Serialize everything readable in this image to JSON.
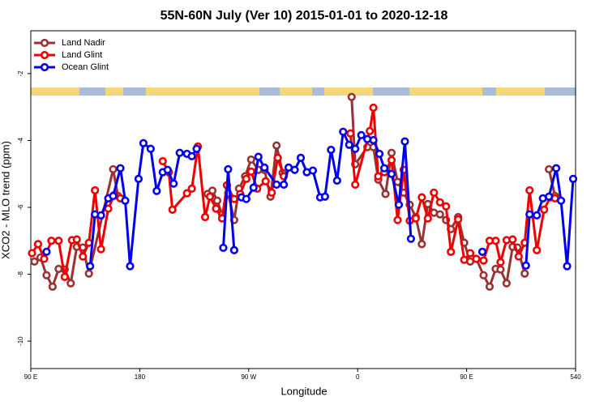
{
  "chart_data": {
    "type": "line",
    "title": "55N-60N July (Ver 10)   2015-01-01 to 2020-12-18",
    "xlabel": "Longitude",
    "ylabel": "XCO2 - MLO trend (ppm)",
    "xlim": [
      90,
      540
    ],
    "ylim": [
      -10.82,
      -0.72
    ],
    "xticks": [
      {
        "value": 90,
        "label": "90 E"
      },
      180,
      {
        "value": 270,
        "label": "90 W"
      },
      {
        "value": 360,
        "label": "0"
      },
      {
        "value": 450,
        "label": "90 E"
      },
      540
    ],
    "yticks": [
      -10,
      -8,
      -6,
      -4,
      -2
    ],
    "legend": "upper left",
    "series": [
      {
        "name": "Land Nadir",
        "color": "#993333",
        "x": [
          93,
          98,
          103,
          108,
          113,
          118,
          123,
          128,
          133,
          138,
          158,
          162,
          200,
          236,
          240,
          244,
          248,
          253,
          258,
          262,
          267,
          272,
          278,
          283,
          288,
          293,
          298,
          390,
          355,
          358,
          368,
          373,
          377,
          383,
          388,
          393,
          398,
          403,
          408,
          413,
          418,
          423,
          428,
          433,
          437,
          443,
          448,
          453,
          458,
          464,
          469,
          474,
          478,
          483,
          488,
          492,
          498,
          505,
          518,
          523
        ],
        "values": [
          -7.62,
          -7.5,
          -8.03,
          -8.37,
          -7.84,
          -7.86,
          -8.27,
          -7.18,
          -7.2,
          -7.98,
          -4.86,
          -5.66,
          null,
          -5.6,
          -5.5,
          -5.8,
          -6.21,
          -5.58,
          -6.38,
          -5.44,
          -5.07,
          -4.57,
          -4.88,
          -4.88,
          -5.68,
          -4.15,
          -4.97,
          null,
          -2.7,
          -4.71,
          -4.2,
          -4.2,
          -5.17,
          -5.6,
          -4.37,
          -5.24,
          -5.56,
          -5.92,
          -6.29,
          -7.1,
          -5.9,
          -6.16,
          -6.21,
          -6.38,
          -6.65,
          -6.29,
          -7.06,
          -7.62,
          -7.54,
          -8.03,
          -8.37,
          -7.84,
          -7.86,
          -8.27,
          -7.18,
          -7.2,
          -7.98,
          null,
          -4.86,
          -5.66
        ]
      },
      {
        "name": "Land Glint",
        "color": "#ee0000",
        "x": [
          91,
          96,
          101,
          107,
          113,
          118,
          124,
          128,
          133,
          138,
          143,
          148,
          154,
          159,
          164,
          180,
          199,
          204,
          207,
          219,
          223,
          228,
          234,
          238,
          243,
          248,
          252,
          258,
          263,
          268,
          272,
          277,
          284,
          289,
          294,
          299,
          330,
          354,
          358,
          370,
          373,
          377,
          382,
          388,
          393,
          398,
          403,
          408,
          413,
          418,
          423,
          428,
          433,
          437,
          443,
          448,
          453,
          458,
          464,
          469,
          474,
          478,
          483,
          488,
          493,
          498,
          502,
          508,
          514,
          519,
          523
        ],
        "values": [
          -7.37,
          -7.1,
          -7.54,
          -7.0,
          -7.0,
          -8.08,
          -6.98,
          -6.96,
          -7.47,
          -7.06,
          -5.49,
          -7.25,
          -6.04,
          -5.63,
          -5.73,
          null,
          -4.62,
          -4.95,
          -6.07,
          -5.58,
          -5.44,
          -4.18,
          -6.29,
          -5.68,
          -6.04,
          -6.33,
          -5.34,
          -5.75,
          -5.6,
          -5.15,
          -4.93,
          -5.44,
          -5.22,
          -5.56,
          -4.52,
          -5.07,
          null,
          -3.79,
          -5.32,
          -3.72,
          -3.02,
          -5.07,
          -4.95,
          -4.59,
          -6.38,
          -4.88,
          -6.4,
          -6.33,
          -5.7,
          -6.33,
          -5.56,
          -5.85,
          -5.97,
          -7.33,
          -6.36,
          -7.57,
          -7.37,
          -7.54,
          -7.59,
          -7.0,
          -7.0,
          -7.64,
          -6.98,
          -6.96,
          -7.47,
          -7.06,
          -5.49,
          -7.28,
          -6.07,
          -5.7,
          -5.73
        ]
      },
      {
        "name": "Ocean Glint",
        "color": "#0000ee",
        "x": [
          103,
          120,
          139,
          143,
          148,
          154,
          158,
          164,
          168,
          172,
          179,
          183,
          189,
          194,
          199,
          203,
          208,
          213,
          219,
          223,
          227,
          240,
          249,
          253,
          258,
          260,
          264,
          268,
          274,
          278,
          283,
          293,
          299,
          303,
          308,
          313,
          318,
          323,
          329,
          333,
          338,
          343,
          348,
          353,
          358,
          363,
          368,
          373,
          378,
          382,
          388,
          394,
          399,
          404,
          450,
          463,
          490,
          499,
          502,
          508,
          513,
          518,
          524,
          528,
          533,
          538
        ],
        "values": [
          -7.33,
          null,
          -7.76,
          -6.21,
          -6.24,
          -5.73,
          -5.66,
          -4.83,
          -5.8,
          -7.76,
          -5.15,
          -4.08,
          -4.25,
          -5.51,
          -4.95,
          -4.88,
          -5.29,
          -4.37,
          -4.4,
          -4.47,
          -4.25,
          null,
          -7.21,
          -4.86,
          -7.28,
          null,
          -5.7,
          -5.75,
          -5.41,
          -4.49,
          -4.81,
          -5.32,
          -5.32,
          -4.81,
          -4.88,
          -4.52,
          -4.95,
          -4.9,
          -5.7,
          -5.68,
          -4.28,
          -5.2,
          -3.74,
          -4.13,
          -4.25,
          -3.84,
          -3.96,
          -3.99,
          -4.4,
          -4.83,
          -5.0,
          -5.92,
          -4.03,
          -6.94,
          null,
          -7.33,
          null,
          -7.74,
          -6.21,
          -6.24,
          -5.73,
          -5.68,
          -4.83,
          -5.8,
          -7.76,
          -5.15
        ]
      }
    ]
  }
}
